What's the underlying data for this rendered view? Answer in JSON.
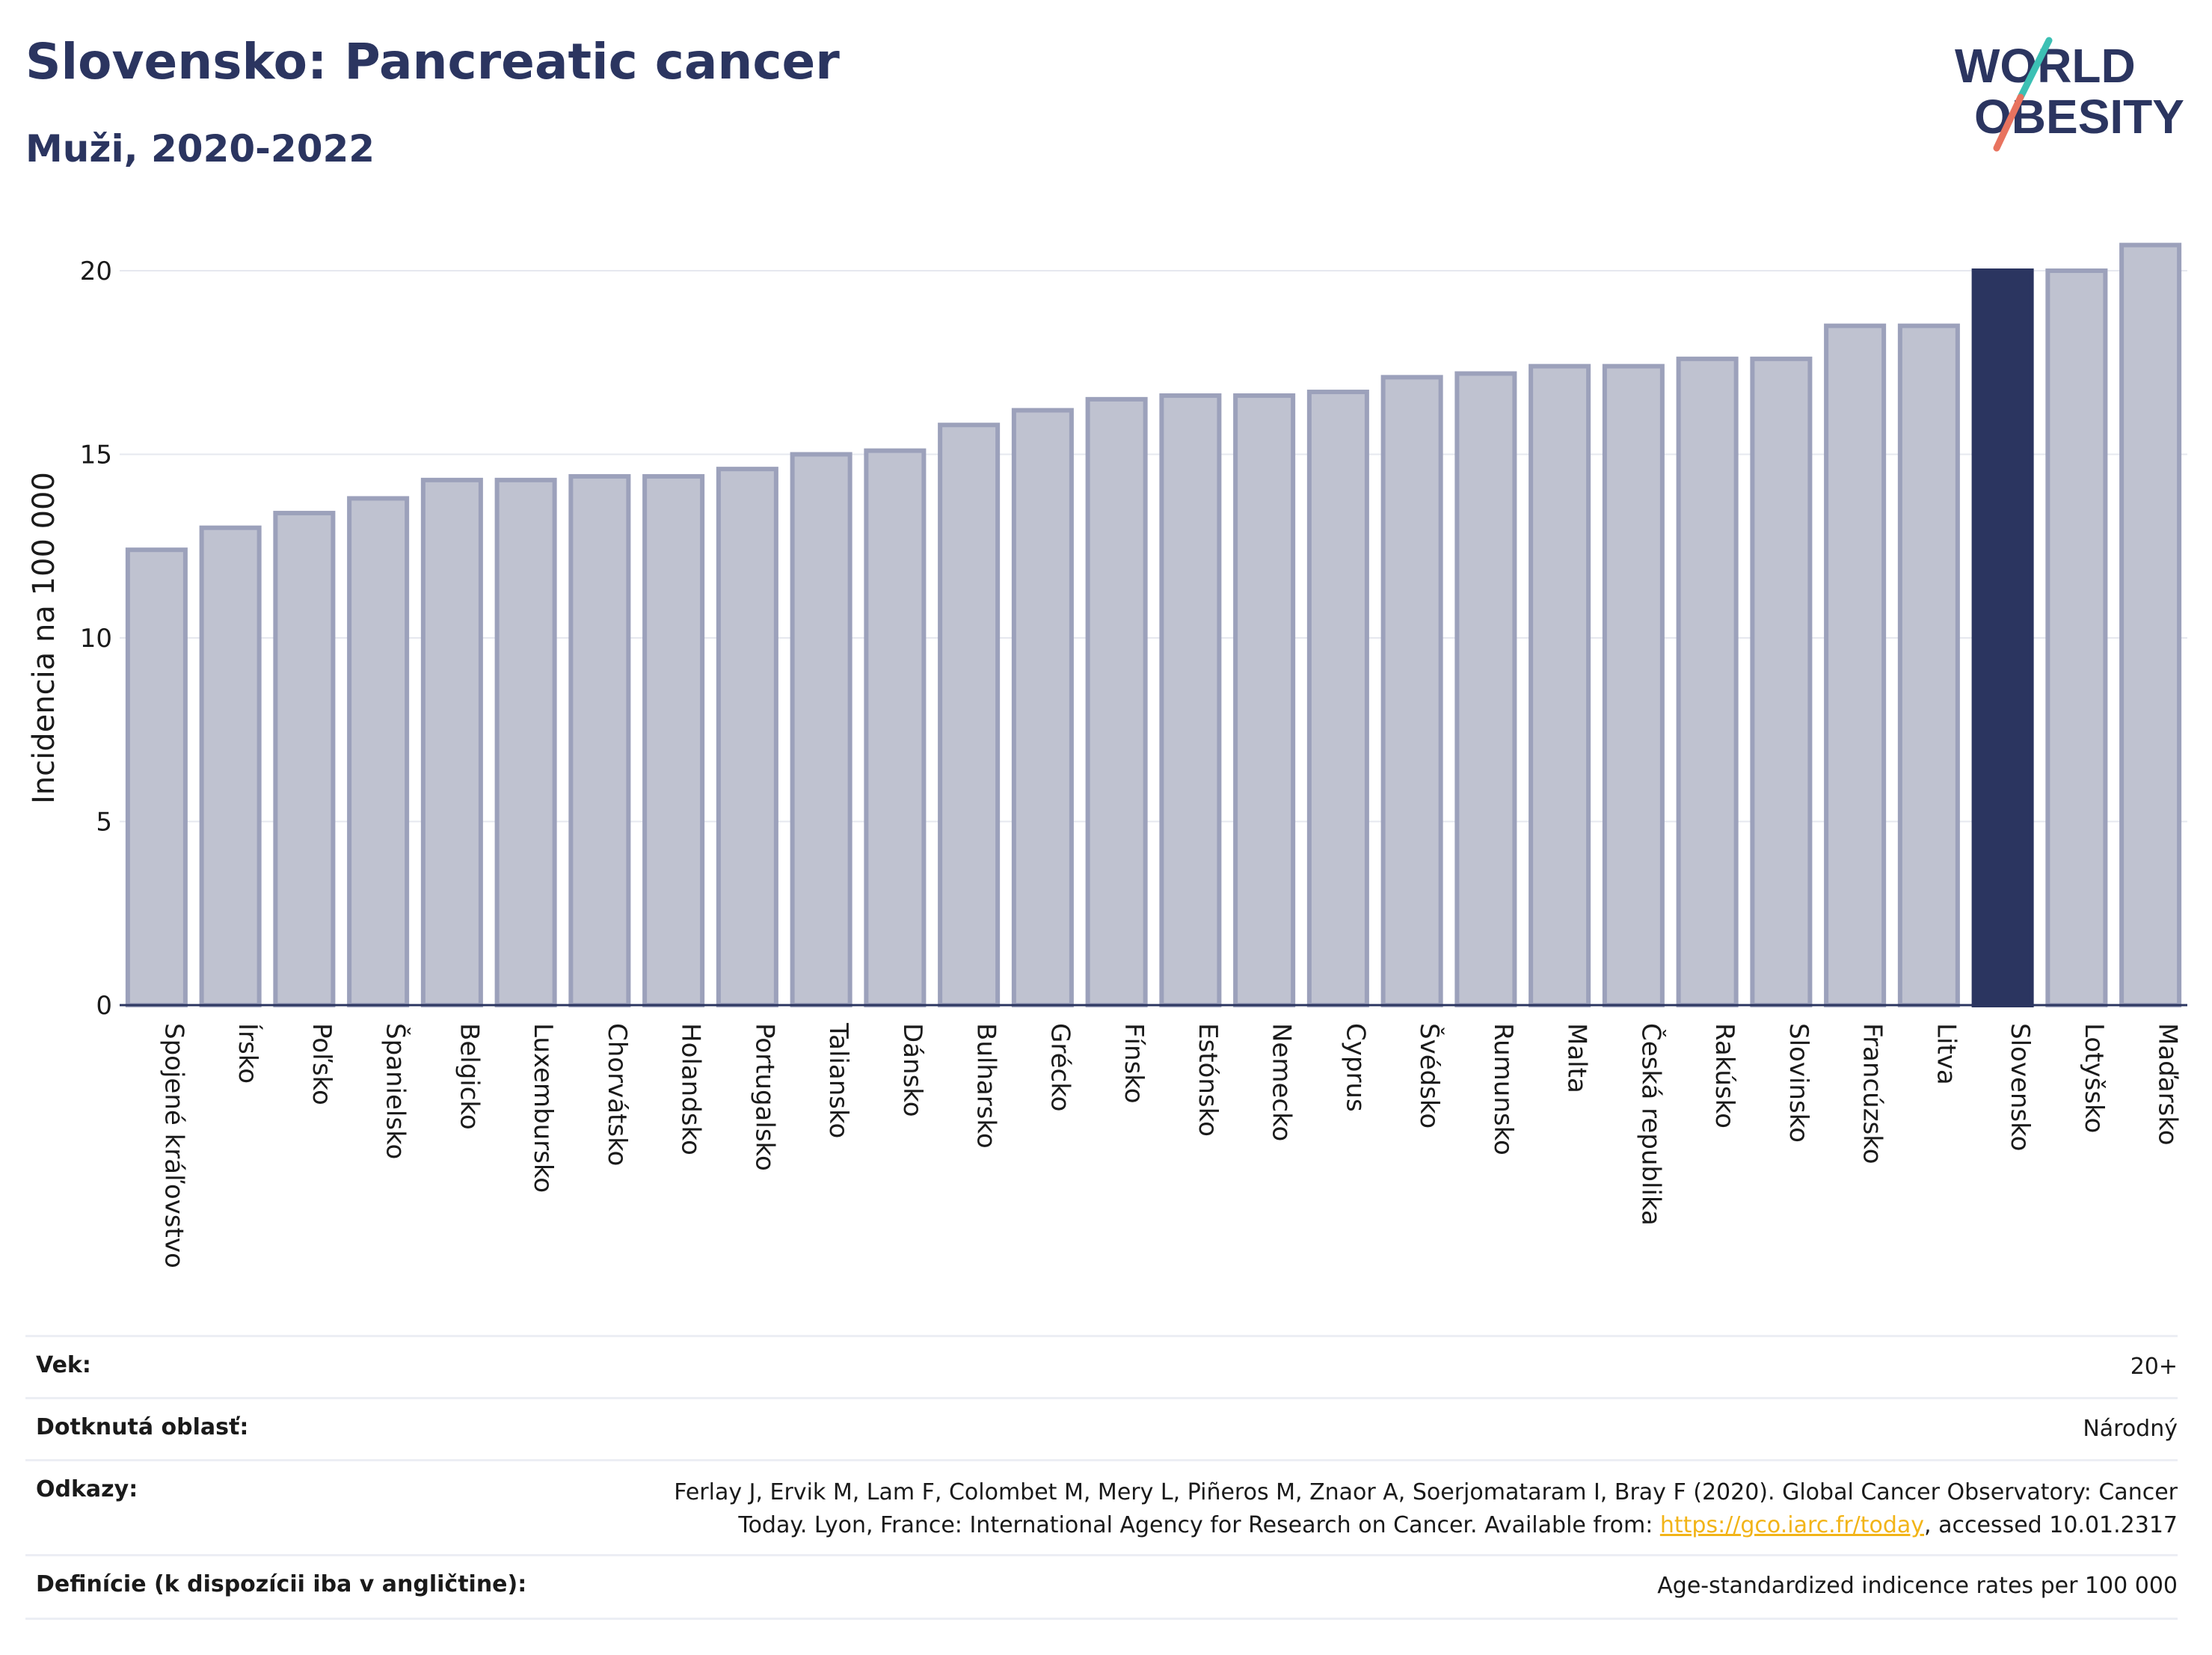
{
  "header": {
    "title": "Slovensko: Pancreatic cancer",
    "subtitle": "Muži, 2020-2022"
  },
  "logo": {
    "line1": "WORLD",
    "line2": "OBESITY",
    "colors": {
      "text": "#2b3560",
      "slash_top": "#3cc0b4",
      "slash_bottom": "#e8735f"
    }
  },
  "chart_data": {
    "type": "bar",
    "ylabel": "Incidencia na 100 000",
    "ylim": [
      0,
      21
    ],
    "yticks": [
      0,
      5,
      10,
      15,
      20
    ],
    "grid": true,
    "highlight": "Slovensko",
    "colors": {
      "bar": "#bfc2d0",
      "bar_border": "#9ca1bb",
      "highlight": "#2b3560",
      "grid": "#e6e8ef",
      "axis": "#2b3560"
    },
    "categories": [
      "Spojené kráľovstvo",
      "Írsko",
      "Poľsko",
      "Španielsko",
      "Belgicko",
      "Luxembursko",
      "Chorvátsko",
      "Holandsko",
      "Portugalsko",
      "Taliansko",
      "Dánsko",
      "Bulharsko",
      "Grécko",
      "Fínsko",
      "Estónsko",
      "Nemecko",
      "Cyprus",
      "Švédsko",
      "Rumunsko",
      "Malta",
      "Česká republika",
      "Rakúsko",
      "Slovinsko",
      "Francúzsko",
      "Litva",
      "Slovensko",
      "Lotyšsko",
      "Maďarsko"
    ],
    "values": [
      12.4,
      13.0,
      13.4,
      13.8,
      14.3,
      14.3,
      14.4,
      14.4,
      14.6,
      15.0,
      15.1,
      15.8,
      16.2,
      16.5,
      16.6,
      16.6,
      16.7,
      17.1,
      17.2,
      17.4,
      17.4,
      17.6,
      17.6,
      18.5,
      18.5,
      20.0,
      20.0,
      20.7
    ]
  },
  "meta": [
    {
      "label": "Vek:",
      "value": "20+"
    },
    {
      "label": "Dotknutá oblasť:",
      "value": "Národný"
    },
    {
      "label": "Odkazy:",
      "value_line1": "Ferlay J, Ervik M, Lam F, Colombet M, Mery L, Piñeros M, Znaor A, Soerjomataram I, Bray F (2020). Global Cancer Observatory: Cancer",
      "value_line2_pre": "Today. Lyon, France: International Agency for Research on Cancer. Available from: ",
      "link": "https://gco.iarc.fr/today",
      "value_line2_post": ", accessed 10.01.2317"
    },
    {
      "label": "Definície (k dispozícii iba v angličtine):",
      "value": "Age-standardized indicence rates per 100 000"
    }
  ]
}
